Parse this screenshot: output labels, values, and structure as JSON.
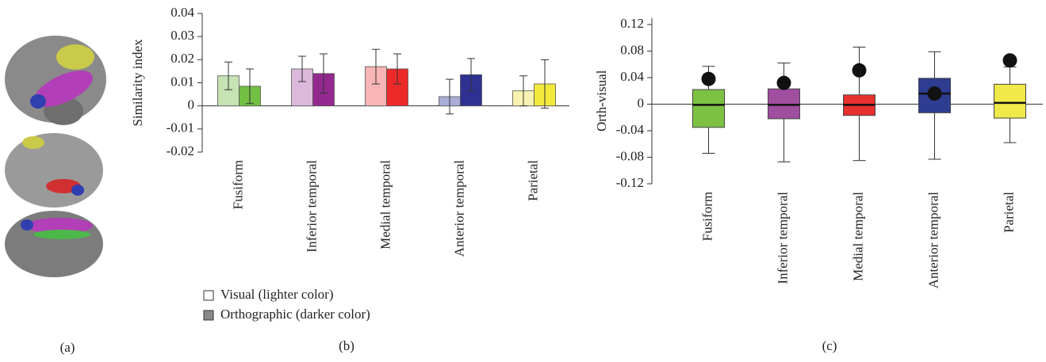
{
  "panel_labels": [
    "(a)",
    "(b)",
    "(c)"
  ],
  "chart_data": [
    {
      "type": "bar",
      "y_label": "Similarity index",
      "categories": [
        "Fusiform",
        "Inferior temporal",
        "Medial temporal",
        "Anterior temporal",
        "Parietal"
      ],
      "series": [
        {
          "name": "Visual (lighter color)",
          "color": "#ffffff",
          "bar_colors": [
            "#c6e3b4",
            "#dcb9dc",
            "#f7b5b5",
            "#a9aed6",
            "#f8f3b0"
          ],
          "values": [
            0.013,
            0.016,
            0.017,
            0.004,
            0.0065
          ],
          "errors": [
            0.006,
            0.0055,
            0.0075,
            0.0075,
            0.0065
          ]
        },
        {
          "name": "Orthographic (darker color)",
          "color": "#888888",
          "bar_colors": [
            "#72bf44",
            "#93298f",
            "#ed2a2a",
            "#2e3192",
            "#f2e93a"
          ],
          "values": [
            0.0085,
            0.014,
            0.016,
            0.0135,
            0.0095
          ],
          "errors": [
            0.0075,
            0.0085,
            0.0065,
            0.007,
            0.0105
          ]
        }
      ],
      "ylim": [
        -0.02,
        0.04
      ],
      "yticks": [
        -0.02,
        -0.01,
        0,
        0.01,
        0.02,
        0.03,
        0.04
      ]
    },
    {
      "type": "box",
      "y_label": "Orth-visual",
      "categories": [
        "Fusiform",
        "Inferior temporal",
        "Medial temporal",
        "Anterior temporal",
        "Parietal"
      ],
      "colors": [
        "#7dc142",
        "#a04ea0",
        "#e8302f",
        "#2e3d92",
        "#f0e94a"
      ],
      "boxes": [
        {
          "whisker_low": -0.074,
          "q1": -0.035,
          "median": -0.001,
          "q3": 0.022,
          "whisker_high": 0.057
        },
        {
          "whisker_low": -0.087,
          "q1": -0.022,
          "median": -0.001,
          "q3": 0.023,
          "whisker_high": 0.062
        },
        {
          "whisker_low": -0.085,
          "q1": -0.017,
          "median": -0.001,
          "q3": 0.014,
          "whisker_high": 0.086
        },
        {
          "whisker_low": -0.083,
          "q1": -0.013,
          "median": 0.016,
          "q3": 0.039,
          "whisker_high": 0.079
        },
        {
          "whisker_low": -0.058,
          "q1": -0.021,
          "median": 0.002,
          "q3": 0.03,
          "whisker_high": 0.056
        }
      ],
      "points": [
        0.038,
        0.032,
        0.051,
        0.016,
        0.066
      ],
      "ylim": [
        -0.12,
        0.13
      ],
      "yticks": [
        -0.12,
        -0.08,
        -0.04,
        0,
        0.04,
        0.08,
        0.12
      ]
    }
  ]
}
